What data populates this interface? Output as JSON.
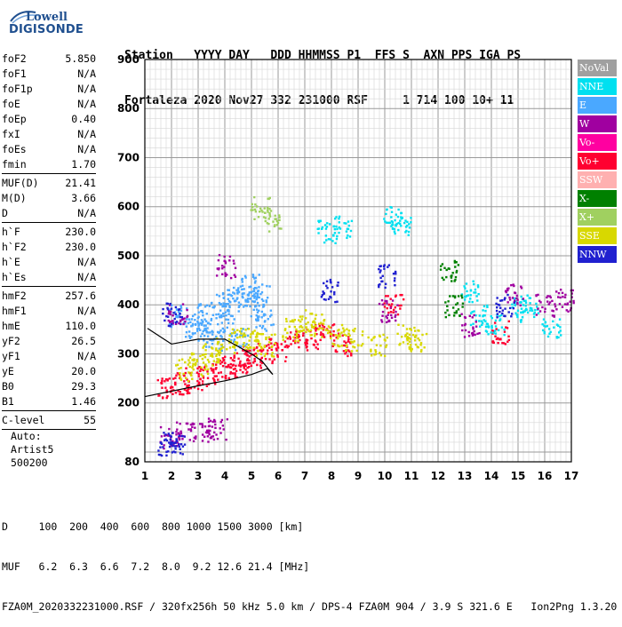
{
  "logo": {
    "line1": "Lowell",
    "line2": "DIGISONDE"
  },
  "header": {
    "labels": "Station   YYYY DAY   DDD HHMMSS P1  FFS S  AXN PPS IGA PS",
    "values": "Fortaleza 2020 Nov27 332 231000 RSF     1 714 100 10+ 11"
  },
  "params": {
    "group1": [
      {
        "name": "foF2",
        "value": "5.850"
      },
      {
        "name": "foF1",
        "value": "N/A"
      },
      {
        "name": "foF1p",
        "value": "N/A"
      },
      {
        "name": "foE",
        "value": "N/A"
      },
      {
        "name": "foEp",
        "value": "0.40"
      },
      {
        "name": "fxI",
        "value": "N/A"
      },
      {
        "name": "foEs",
        "value": "N/A"
      },
      {
        "name": "fmin",
        "value": "1.70"
      }
    ],
    "group2": [
      {
        "name": "MUF(D)",
        "value": "21.41"
      },
      {
        "name": "M(D)",
        "value": "3.66"
      },
      {
        "name": "D",
        "value": "N/A"
      }
    ],
    "group3": [
      {
        "name": "h`F",
        "value": "230.0"
      },
      {
        "name": "h`F2",
        "value": "230.0"
      },
      {
        "name": "h`E",
        "value": "N/A"
      },
      {
        "name": "h`Es",
        "value": "N/A"
      }
    ],
    "group4": [
      {
        "name": "hmF2",
        "value": "257.6"
      },
      {
        "name": "hmF1",
        "value": "N/A"
      },
      {
        "name": "hmE",
        "value": "110.0"
      },
      {
        "name": "yF2",
        "value": "26.5"
      },
      {
        "name": "yF1",
        "value": "N/A"
      },
      {
        "name": "yE",
        "value": "20.0"
      },
      {
        "name": "B0",
        "value": "29.3"
      },
      {
        "name": "B1",
        "value": "1.46"
      }
    ],
    "group5": [
      {
        "name": "C-level",
        "value": "55"
      }
    ]
  },
  "footer": {
    "line1": "Auto:",
    "line2": "Artist5",
    "line3": "500200"
  },
  "bottom": {
    "line1": "D     100  200  400  600  800 1000 1500 3000 [km]",
    "line2": "MUF   6.2  6.3  6.6  7.2  8.0  9.2 12.6 21.4 [MHz]",
    "line3": "FZA0M_2020332231000.RSF / 320fx256h 50 kHz 5.0 km / DPS-4 FZA0M 904 / 3.9 S 321.6 E   Ion2Png 1.3.20"
  },
  "legend": [
    {
      "label": "NoVal",
      "color": "#a0a0a0"
    },
    {
      "label": "NNE",
      "color": "#00e0f0"
    },
    {
      "label": "E",
      "color": "#4aa8ff"
    },
    {
      "label": "W",
      "color": "#a000a0"
    },
    {
      "label": "Vo-",
      "color": "#ff00a0"
    },
    {
      "label": "Vo+",
      "color": "#ff0030"
    },
    {
      "label": "SSW",
      "color": "#ffb0b0"
    },
    {
      "label": "X-",
      "color": "#008000"
    },
    {
      "label": "X+",
      "color": "#a0d060"
    },
    {
      "label": "SSE",
      "color": "#d8d800"
    },
    {
      "label": "NNW",
      "color": "#2020d0"
    }
  ],
  "chart_data": {
    "type": "scatter",
    "xlabel": "",
    "ylabel": "",
    "xlim": [
      1,
      17
    ],
    "ylim": [
      80,
      900
    ],
    "xticks": [
      1,
      2,
      3,
      4,
      5,
      6,
      7,
      8,
      9,
      10,
      11,
      12,
      13,
      14,
      15,
      16,
      17
    ],
    "yticks": [
      80,
      200,
      300,
      400,
      500,
      600,
      700,
      800,
      900
    ],
    "series": [
      {
        "name": "E",
        "points": [
          [
            2.2,
            380
          ],
          [
            2.8,
            360
          ],
          [
            3.3,
            380
          ],
          [
            3.8,
            400
          ],
          [
            4.2,
            410
          ],
          [
            4.6,
            420
          ],
          [
            5.1,
            400
          ],
          [
            5.5,
            370
          ],
          [
            4.0,
            360
          ],
          [
            4.5,
            330
          ],
          [
            3.6,
            330
          ],
          [
            4.9,
            440
          ],
          [
            5.3,
            420
          ],
          [
            3.0,
            350
          ]
        ]
      },
      {
        "name": "Vo+",
        "points": [
          [
            1.8,
            235
          ],
          [
            2.3,
            240
          ],
          [
            2.8,
            250
          ],
          [
            3.3,
            255
          ],
          [
            3.8,
            265
          ],
          [
            4.2,
            275
          ],
          [
            4.6,
            285
          ],
          [
            5.0,
            295
          ],
          [
            5.4,
            300
          ],
          [
            6.0,
            310
          ],
          [
            6.7,
            330
          ],
          [
            7.3,
            335
          ],
          [
            7.7,
            340
          ],
          [
            8.4,
            320
          ],
          [
            10.3,
            400
          ],
          [
            14.3,
            345
          ]
        ]
      },
      {
        "name": "SSE",
        "points": [
          [
            2.5,
            270
          ],
          [
            3.0,
            280
          ],
          [
            3.5,
            300
          ],
          [
            4.0,
            310
          ],
          [
            4.5,
            330
          ],
          [
            5.0,
            330
          ],
          [
            5.5,
            320
          ],
          [
            6.5,
            350
          ],
          [
            7.0,
            370
          ],
          [
            7.5,
            360
          ],
          [
            8.2,
            340
          ],
          [
            8.8,
            330
          ],
          [
            9.7,
            320
          ],
          [
            10.8,
            340
          ],
          [
            11.2,
            330
          ]
        ]
      },
      {
        "name": "NNE",
        "points": [
          [
            7.8,
            550
          ],
          [
            8.4,
            560
          ],
          [
            10.3,
            580
          ],
          [
            10.6,
            560
          ],
          [
            13.2,
            430
          ],
          [
            13.5,
            380
          ],
          [
            14.1,
            360
          ],
          [
            15.1,
            400
          ],
          [
            15.4,
            390
          ],
          [
            16.2,
            350
          ]
        ]
      },
      {
        "name": "W",
        "points": [
          [
            1.9,
            130
          ],
          [
            2.5,
            140
          ],
          [
            3.1,
            145
          ],
          [
            3.7,
            150
          ],
          [
            2.2,
            380
          ],
          [
            4.0,
            480
          ],
          [
            10.1,
            390
          ],
          [
            13.2,
            360
          ],
          [
            14.8,
            420
          ],
          [
            16.0,
            400
          ],
          [
            16.7,
            410
          ]
        ]
      },
      {
        "name": "NNW",
        "points": [
          [
            1.8,
            118
          ],
          [
            2.1,
            120
          ],
          [
            2.0,
            382
          ],
          [
            7.9,
            430
          ],
          [
            10.1,
            460
          ],
          [
            14.5,
            400
          ]
        ]
      },
      {
        "name": "X-",
        "points": [
          [
            12.4,
            470
          ],
          [
            12.6,
            400
          ]
        ]
      },
      {
        "name": "X+",
        "points": [
          [
            5.3,
            600
          ],
          [
            5.8,
            570
          ]
        ]
      }
    ]
  }
}
